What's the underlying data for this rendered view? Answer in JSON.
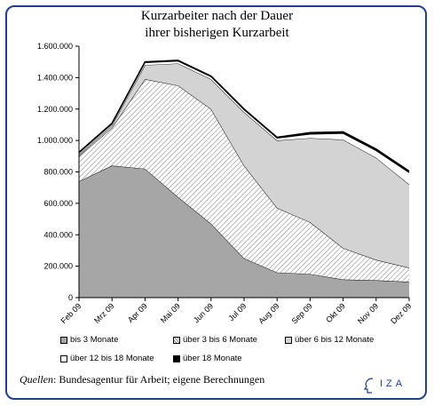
{
  "title_line1": "Kurzarbeiter nach der Dauer",
  "title_line2": "ihrer bisherigen Kurzarbeit",
  "source": {
    "label": "Quellen",
    "text": ": Bundesagentur für Arbeit; eigene Berechnungen"
  },
  "logo_text": "IZA",
  "chart_data": {
    "type": "area",
    "stacked": true,
    "title": "Kurzarbeiter nach der Dauer ihrer bisherigen Kurzarbeit",
    "xlabel": "",
    "ylabel": "",
    "ylim": [
      0,
      1600000
    ],
    "y_ticks": [
      0,
      200000,
      400000,
      600000,
      800000,
      1000000,
      1200000,
      1400000,
      1600000
    ],
    "y_tick_labels": [
      "0",
      "200.000",
      "400.000",
      "600.000",
      "800.000",
      "1.000.000",
      "1.200.000",
      "1.400.000",
      "1.600.000"
    ],
    "categories": [
      "Feb 09",
      "Mrz 09",
      "Apr 09",
      "Mai 09",
      "Jun 09",
      "Jul 09",
      "Aug 09",
      "Sep 09",
      "Okt 09",
      "Nov 09",
      "Dez 09"
    ],
    "legend_position": "bottom",
    "grid": false,
    "series": [
      {
        "name": "bis 3 Monate",
        "color": "#a6a6a6",
        "pattern": "solid",
        "values": [
          740000,
          840000,
          820000,
          640000,
          470000,
          250000,
          160000,
          150000,
          115000,
          110000,
          100000
        ]
      },
      {
        "name": "über 3 bis 6 Monate",
        "color": "#ffffff",
        "pattern": "hatch",
        "values": [
          160000,
          240000,
          570000,
          710000,
          730000,
          590000,
          410000,
          330000,
          200000,
          130000,
          90000
        ]
      },
      {
        "name": "über 6 bis 12 Monate",
        "color": "#d3d3d3",
        "pattern": "solid",
        "values": [
          10000,
          15000,
          90000,
          140000,
          190000,
          340000,
          430000,
          535000,
          690000,
          650000,
          530000
        ]
      },
      {
        "name": "über 12 bis 18 Monate",
        "color": "#ffffff",
        "pattern": "solid",
        "values": [
          10000,
          10000,
          15000,
          15000,
          15000,
          15000,
          15000,
          25000,
          40000,
          45000,
          75000
        ]
      },
      {
        "name": "über 18 Monate",
        "color": "#000000",
        "pattern": "solid",
        "values": [
          5000,
          5000,
          5000,
          5000,
          5000,
          5000,
          5000,
          10000,
          10000,
          10000,
          10000
        ]
      }
    ]
  }
}
